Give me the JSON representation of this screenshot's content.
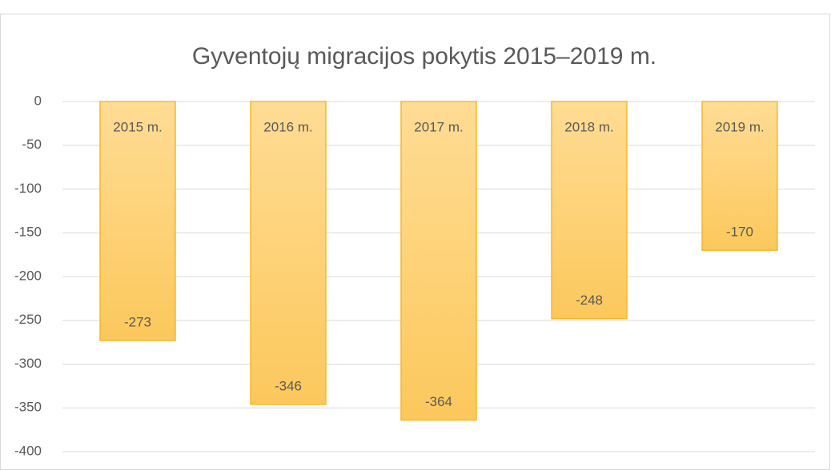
{
  "chart_data": {
    "type": "bar",
    "title": "Gyventojų migracijos pokytis 2015–2019 m.",
    "categories": [
      "2015 m.",
      "2016 m.",
      "2017 m.",
      "2018 m.",
      "2019 m."
    ],
    "values": [
      -273,
      -346,
      -364,
      -248,
      -170
    ],
    "color": "#fdd17a",
    "ylim": [
      -400,
      0
    ],
    "yticks": [
      0,
      -50,
      -100,
      -150,
      -200,
      -250,
      -300,
      -350,
      -400
    ],
    "grid": true
  }
}
